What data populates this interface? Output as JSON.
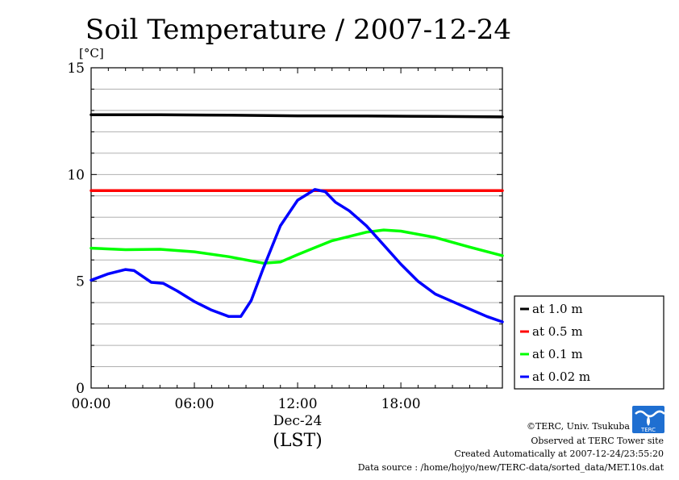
{
  "chart_data": {
    "type": "line",
    "title": "Soil Temperature / 2007-12-24",
    "ylabel": "[°C]",
    "ylim": [
      0,
      15
    ],
    "xlim": [
      0,
      23.9
    ],
    "grid": true,
    "x_ticks": [
      {
        "value": 0,
        "label": "00:00"
      },
      {
        "value": 6,
        "label": "06:00"
      },
      {
        "value": 12,
        "label": "12:00"
      },
      {
        "value": 18,
        "label": "18:00"
      }
    ],
    "y_ticks": [
      {
        "value": 0,
        "label": "0"
      },
      {
        "value": 5,
        "label": "5"
      },
      {
        "value": 10,
        "label": "10"
      },
      {
        "value": 15,
        "label": "15"
      }
    ],
    "x_sublabel": "Dec-24",
    "x_unit": "(LST)",
    "legend_position": "right",
    "series": [
      {
        "name": "at 1.0 m",
        "color": "#000000",
        "points": [
          [
            0,
            12.8
          ],
          [
            4,
            12.8
          ],
          [
            8,
            12.78
          ],
          [
            12,
            12.75
          ],
          [
            16,
            12.74
          ],
          [
            20,
            12.72
          ],
          [
            23.9,
            12.7
          ]
        ]
      },
      {
        "name": "at 0.5 m",
        "color": "#ff0000",
        "points": [
          [
            0,
            9.25
          ],
          [
            6,
            9.25
          ],
          [
            12,
            9.25
          ],
          [
            18,
            9.25
          ],
          [
            23.9,
            9.25
          ]
        ]
      },
      {
        "name": "at 0.1 m",
        "color": "#00ff00",
        "points": [
          [
            0,
            6.55
          ],
          [
            2,
            6.48
          ],
          [
            4,
            6.5
          ],
          [
            6,
            6.38
          ],
          [
            8,
            6.15
          ],
          [
            10,
            5.85
          ],
          [
            11,
            5.9
          ],
          [
            12,
            6.25
          ],
          [
            14,
            6.9
          ],
          [
            16,
            7.3
          ],
          [
            17,
            7.4
          ],
          [
            18,
            7.35
          ],
          [
            20,
            7.05
          ],
          [
            22,
            6.6
          ],
          [
            23.9,
            6.2
          ]
        ]
      },
      {
        "name": "at 0.02 m",
        "color": "#0000ff",
        "points": [
          [
            0,
            5.05
          ],
          [
            1,
            5.35
          ],
          [
            2,
            5.55
          ],
          [
            2.5,
            5.5
          ],
          [
            3.5,
            4.95
          ],
          [
            4.2,
            4.9
          ],
          [
            5,
            4.55
          ],
          [
            6,
            4.05
          ],
          [
            7,
            3.65
          ],
          [
            8,
            3.35
          ],
          [
            8.7,
            3.35
          ],
          [
            9.3,
            4.1
          ],
          [
            10,
            5.6
          ],
          [
            11,
            7.6
          ],
          [
            12,
            8.8
          ],
          [
            12.6,
            9.1
          ],
          [
            13,
            9.3
          ],
          [
            13.6,
            9.2
          ],
          [
            14.2,
            8.7
          ],
          [
            15,
            8.3
          ],
          [
            16,
            7.6
          ],
          [
            17,
            6.7
          ],
          [
            18,
            5.8
          ],
          [
            19,
            5.0
          ],
          [
            20,
            4.4
          ],
          [
            21,
            4.05
          ],
          [
            22,
            3.7
          ],
          [
            23,
            3.35
          ],
          [
            23.9,
            3.1
          ]
        ]
      }
    ]
  },
  "credits": {
    "copyright": "©TERC, Univ. Tsukuba",
    "site": "Observed at TERC Tower site",
    "created": "Created Automatically at 2007-12-24/23:55:20",
    "source": "Data source : /home/hojyo/new/TERC-data/sorted_data/MET.10s.dat",
    "logo_text": "TERC"
  }
}
